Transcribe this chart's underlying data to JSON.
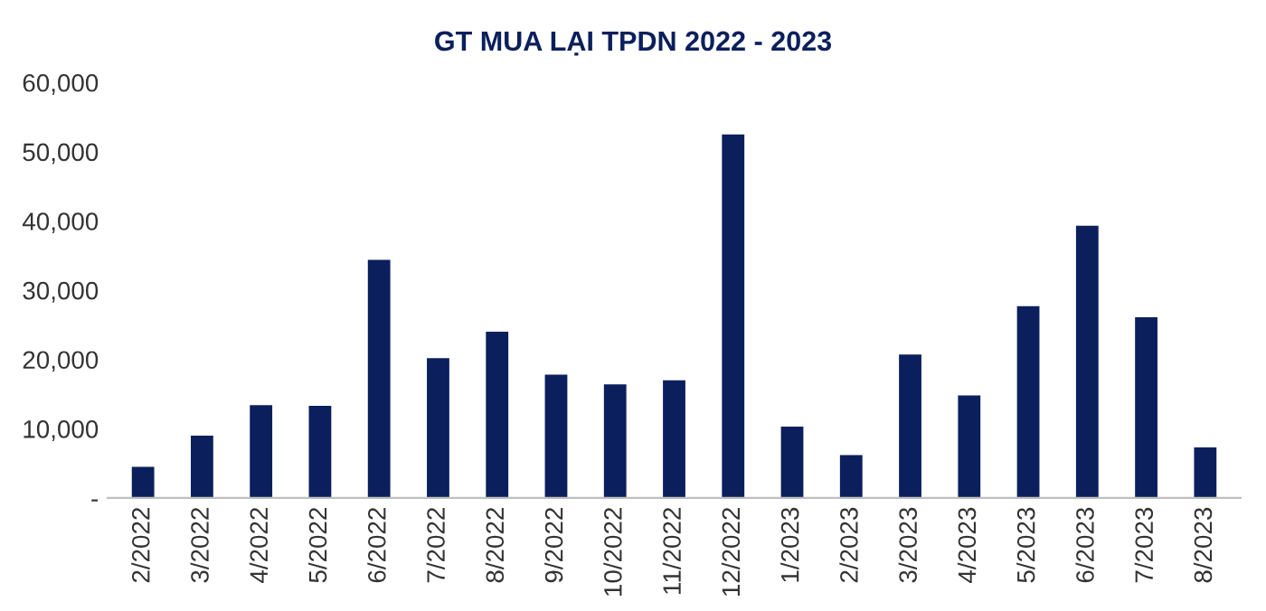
{
  "chart_data": {
    "type": "bar",
    "title": "GT MUA LẠI TPDN 2022 - 2023",
    "categories": [
      "2/2022",
      "3/2022",
      "4/2022",
      "5/2022",
      "6/2022",
      "7/2022",
      "8/2022",
      "9/2022",
      "10/2022",
      "11/2022",
      "12/2022",
      "1/2023",
      "2/2023",
      "3/2023",
      "4/2023",
      "5/2023",
      "6/2023",
      "7/2023",
      "8/2023"
    ],
    "values": [
      4500,
      9000,
      13400,
      13300,
      34400,
      20200,
      24000,
      17800,
      16400,
      17000,
      52500,
      10300,
      6200,
      20700,
      14800,
      27700,
      39300,
      26100,
      7300
    ],
    "color": "#0b1f5c",
    "ylim": [
      0,
      60000
    ],
    "yticks": [
      {
        "value": 0,
        "label": "-"
      },
      {
        "value": 10000,
        "label": "10,000"
      },
      {
        "value": 20000,
        "label": "20,000"
      },
      {
        "value": 30000,
        "label": "30,000"
      },
      {
        "value": 40000,
        "label": "40,000"
      },
      {
        "value": 50000,
        "label": "50,000"
      },
      {
        "value": 60000,
        "label": "60,000"
      }
    ],
    "grid": false
  }
}
